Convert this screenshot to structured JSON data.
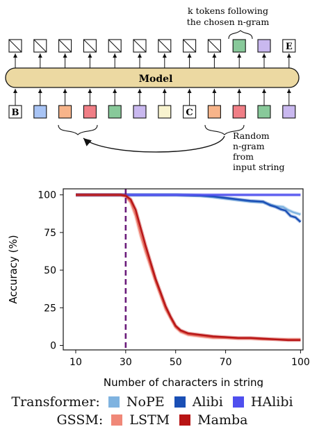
{
  "diagram": {
    "model_label": "Model",
    "top_caption_line1": "k tokens following",
    "top_caption_line2": "the chosen n-gram",
    "side_caption": [
      "Random",
      "n-gram",
      "from",
      "input string"
    ],
    "output_tokens": [
      {
        "kind": "empty"
      },
      {
        "kind": "empty"
      },
      {
        "kind": "empty"
      },
      {
        "kind": "empty"
      },
      {
        "kind": "empty"
      },
      {
        "kind": "empty"
      },
      {
        "kind": "empty"
      },
      {
        "kind": "empty"
      },
      {
        "kind": "empty"
      },
      {
        "kind": "color",
        "color": "#88c99a"
      },
      {
        "kind": "color",
        "color": "#c9b8ef"
      },
      {
        "kind": "text",
        "text": "E"
      }
    ],
    "input_tokens": [
      {
        "kind": "text",
        "text": "B"
      },
      {
        "kind": "color",
        "color": "#a8c4f5"
      },
      {
        "kind": "color",
        "color": "#f7b48a"
      },
      {
        "kind": "color",
        "color": "#f07e86"
      },
      {
        "kind": "color",
        "color": "#88c99a"
      },
      {
        "kind": "color",
        "color": "#c9b8ef"
      },
      {
        "kind": "color",
        "color": "#f8f3cf"
      },
      {
        "kind": "text",
        "text": "C"
      },
      {
        "kind": "color",
        "color": "#f7b48a"
      },
      {
        "kind": "color",
        "color": "#f07e86"
      },
      {
        "kind": "color",
        "color": "#88c99a"
      },
      {
        "kind": "color",
        "color": "#c9b8ef"
      }
    ],
    "model_color": "#ecd9a2"
  },
  "chart_data": {
    "type": "line",
    "xlabel": "Number of characters in string",
    "ylabel": "Accuracy (%)",
    "xlim": [
      5,
      101
    ],
    "ylim": [
      -3,
      104
    ],
    "xticks": [
      10,
      30,
      50,
      70,
      100
    ],
    "yticks": [
      0,
      25,
      50,
      75,
      100
    ],
    "vline": {
      "x": 30,
      "color": "#6a1b7a",
      "style": "dashed"
    },
    "series": [
      {
        "name": "NoPE",
        "group": "Transformer",
        "color": "#7fb3e0",
        "x": [
          10,
          30,
          50,
          60,
          65,
          70,
          75,
          80,
          85,
          88,
          90,
          93,
          95,
          97,
          100
        ],
        "y": [
          100,
          100,
          100,
          99.5,
          98.5,
          97.5,
          96.5,
          95.5,
          95,
          93.5,
          92.5,
          92,
          90,
          88.5,
          87
        ]
      },
      {
        "name": "Alibi",
        "group": "Transformer",
        "color": "#1a4fb5",
        "x": [
          10,
          30,
          50,
          60,
          65,
          70,
          75,
          80,
          85,
          88,
          90,
          92,
          94,
          96,
          98,
          100
        ],
        "y": [
          100,
          100,
          100,
          99.5,
          99,
          98,
          97,
          96,
          95.5,
          93,
          92,
          90.5,
          89.5,
          86,
          85,
          82
        ]
      },
      {
        "name": "HAlibi",
        "group": "Transformer",
        "color": "#4f4fee",
        "x": [
          10,
          30,
          50,
          70,
          100
        ],
        "y": [
          100,
          100,
          100,
          100,
          100
        ]
      },
      {
        "name": "LSTM",
        "group": "GSSM",
        "color": "#f08878",
        "x": [
          10,
          20,
          28,
          30,
          32,
          34,
          36,
          38,
          40,
          42,
          44,
          46,
          48,
          50,
          52,
          55,
          60,
          65,
          70,
          75,
          80,
          85,
          90,
          95,
          100
        ],
        "y": [
          100,
          100,
          100,
          99,
          95,
          86,
          73,
          62,
          52,
          42,
          33,
          24,
          18,
          12,
          9,
          7,
          6,
          5,
          5,
          4.5,
          4.5,
          4,
          4,
          4,
          4
        ]
      },
      {
        "name": "Mamba",
        "group": "GSSM",
        "color": "#b81414",
        "x": [
          10,
          20,
          28,
          30,
          32,
          34,
          36,
          38,
          40,
          42,
          44,
          46,
          48,
          50,
          52,
          55,
          60,
          65,
          70,
          75,
          80,
          85,
          90,
          95,
          100
        ],
        "y": [
          100,
          100,
          100,
          99.5,
          97,
          90,
          78,
          66,
          55,
          44,
          35,
          26,
          19,
          13,
          10,
          8,
          7,
          6,
          5.5,
          5,
          5,
          4.5,
          4,
          3.5,
          3.5
        ]
      }
    ],
    "legend": {
      "rows": [
        {
          "group": "Transformer:",
          "items": [
            {
              "label": "NoPE",
              "color": "#7fb3e0"
            },
            {
              "label": "Alibi",
              "color": "#1a4fb5"
            },
            {
              "label": "HAlibi",
              "color": "#4f4fee"
            }
          ]
        },
        {
          "group": "GSSM:",
          "items": [
            {
              "label": "LSTM",
              "color": "#f08878"
            },
            {
              "label": "Mamba",
              "color": "#b81414"
            }
          ]
        }
      ]
    }
  }
}
